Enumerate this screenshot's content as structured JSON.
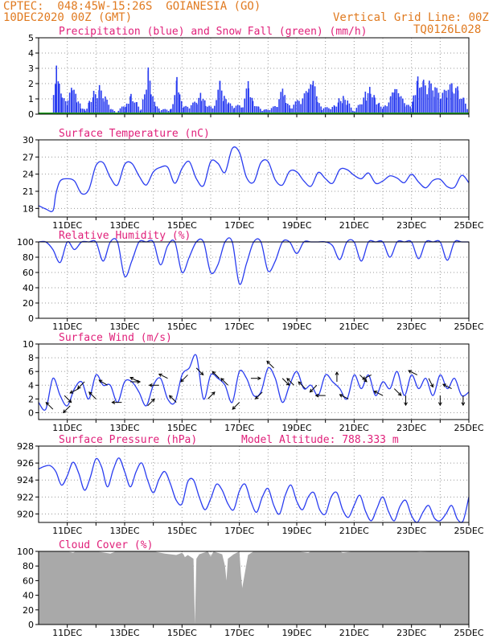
{
  "header": {
    "line1_left": "CPTEC:  048:45W-15:26S  GOIANESIA (GO)",
    "line2_left": "10DEC2020 00Z (GMT)",
    "line2_right": "Vertical Grid Line: 00Z",
    "line3_right": "TQ0126L028"
  },
  "colors": {
    "header": "#e07a20",
    "title": "#e0207a",
    "series": "#2a3df0",
    "snow": "#20a020",
    "cloud": "#a9a9a9"
  },
  "x_tick_labels": [
    "11DEC",
    "13DEC",
    "15DEC",
    "17DEC",
    "19DEC",
    "21DEC",
    "23DEC",
    "25DEC"
  ],
  "chart_data": [
    {
      "id": "precip",
      "type": "bar",
      "title": "Precipitation (blue) and Snow Fall (green) (mm/h)",
      "ylim": [
        0,
        5
      ],
      "yticks": [
        0,
        1,
        2,
        3,
        4,
        5
      ],
      "x_range_days": [
        10,
        25
      ],
      "series": [
        {
          "name": "Precipitation",
          "color": "#2a3df0",
          "points": [
            [
              10.5,
              1.3
            ],
            [
              10.6,
              3.2
            ],
            [
              10.7,
              2.0
            ],
            [
              10.8,
              1.1
            ],
            [
              11.0,
              1.0
            ],
            [
              11.15,
              2.0
            ],
            [
              11.3,
              1.2
            ],
            [
              11.45,
              0.6
            ],
            [
              11.6,
              0.3
            ],
            [
              11.75,
              1.0
            ],
            [
              11.9,
              1.6
            ],
            [
              12.1,
              1.9
            ],
            [
              12.3,
              1.2
            ],
            [
              12.5,
              0.4
            ],
            [
              12.7,
              0.1
            ],
            [
              13.05,
              0.9
            ],
            [
              13.2,
              1.5
            ],
            [
              13.4,
              0.8
            ],
            [
              13.55,
              0.3
            ],
            [
              13.8,
              3.3
            ],
            [
              13.9,
              1.5
            ],
            [
              14.05,
              0.7
            ],
            [
              14.2,
              0.3
            ],
            [
              14.6,
              0.4
            ],
            [
              14.8,
              2.5
            ],
            [
              14.9,
              1.3
            ],
            [
              15.05,
              0.5
            ],
            [
              15.5,
              0.9
            ],
            [
              15.65,
              1.5
            ],
            [
              15.8,
              0.8
            ],
            [
              16.05,
              0.4
            ],
            [
              16.3,
              2.2
            ],
            [
              16.45,
              1.2
            ],
            [
              16.6,
              0.8
            ],
            [
              16.8,
              0.5
            ],
            [
              17.1,
              0.8
            ],
            [
              17.3,
              2.3
            ],
            [
              17.45,
              1.0
            ],
            [
              17.65,
              0.5
            ],
            [
              17.85,
              0.3
            ],
            [
              18.3,
              0.6
            ],
            [
              18.5,
              2.0
            ],
            [
              18.6,
              1.2
            ],
            [
              18.75,
              0.5
            ],
            [
              19.4,
              1.7
            ],
            [
              19.55,
              2.4
            ],
            [
              19.7,
              1.0
            ],
            [
              19.85,
              0.4
            ],
            [
              20.3,
              0.6
            ],
            [
              20.45,
              1.1
            ],
            [
              20.6,
              1.2
            ],
            [
              20.75,
              0.9
            ],
            [
              21.0,
              0.2
            ],
            [
              21.4,
              1.6
            ],
            [
              21.55,
              1.9
            ],
            [
              21.7,
              1.3
            ],
            [
              21.85,
              0.8
            ],
            [
              22.0,
              0.5
            ],
            [
              22.25,
              1.2
            ],
            [
              22.4,
              1.8
            ],
            [
              22.55,
              1.4
            ],
            [
              22.75,
              0.8
            ],
            [
              22.95,
              0.5
            ],
            [
              23.05,
              1.6
            ],
            [
              23.2,
              2.8
            ],
            [
              23.4,
              2.3
            ],
            [
              23.6,
              2.2
            ],
            [
              23.8,
              1.9
            ],
            [
              24.0,
              1.3
            ],
            [
              24.2,
              1.8
            ],
            [
              24.4,
              2.1
            ],
            [
              24.6,
              1.8
            ],
            [
              24.8,
              1.1
            ],
            [
              24.95,
              0.5
            ]
          ]
        },
        {
          "name": "Snow Fall",
          "color": "#20a020",
          "points": []
        }
      ]
    },
    {
      "id": "temp",
      "type": "line",
      "title": "Surface Temperature (nC)",
      "ylim": [
        16.5,
        30
      ],
      "yticks": [
        18,
        21,
        24,
        27,
        30
      ],
      "x_range_days": [
        10,
        25
      ],
      "x": [
        10.0,
        10.25,
        10.5,
        10.6,
        10.75,
        11.0,
        11.25,
        11.5,
        11.75,
        12.0,
        12.25,
        12.5,
        12.75,
        13.0,
        13.25,
        13.5,
        13.75,
        14.0,
        14.25,
        14.5,
        14.75,
        15.0,
        15.25,
        15.5,
        15.75,
        16.0,
        16.25,
        16.5,
        16.75,
        17.0,
        17.25,
        17.5,
        17.75,
        18.0,
        18.25,
        18.5,
        18.75,
        19.0,
        19.25,
        19.5,
        19.75,
        20.0,
        20.25,
        20.5,
        20.75,
        21.0,
        21.25,
        21.5,
        21.75,
        22.0,
        22.25,
        22.5,
        22.75,
        23.0,
        23.25,
        23.5,
        23.75,
        24.0,
        24.25,
        24.5,
        24.75,
        25.0
      ],
      "y": [
        18.5,
        17.9,
        17.6,
        20.5,
        22.8,
        23.2,
        22.8,
        20.6,
        21.3,
        25.5,
        26.0,
        23.4,
        22.1,
        25.7,
        25.9,
        23.7,
        22.1,
        24.4,
        25.2,
        25.2,
        22.4,
        25.0,
        26.2,
        23.2,
        22.0,
        26.2,
        25.9,
        24.3,
        28.5,
        27.8,
        23.4,
        22.6,
        26.0,
        26.2,
        23.0,
        22.1,
        24.5,
        24.4,
        22.8,
        21.9,
        24.3,
        23.2,
        22.4,
        24.8,
        24.8,
        23.8,
        23.2,
        24.2,
        22.4,
        22.8,
        23.7,
        23.3,
        22.5,
        24.0,
        22.6,
        21.6,
        22.9,
        23.1,
        21.8,
        21.7,
        23.8,
        22.5
      ]
    },
    {
      "id": "rh",
      "type": "line",
      "title": "Relative Humidity (%)",
      "ylim": [
        0,
        100
      ],
      "yticks": [
        0,
        20,
        40,
        60,
        80,
        100
      ],
      "x_range_days": [
        10,
        25
      ],
      "x": [
        10.0,
        10.25,
        10.5,
        10.75,
        11.0,
        11.25,
        11.5,
        11.75,
        12.0,
        12.25,
        12.5,
        12.75,
        13.0,
        13.25,
        13.5,
        13.75,
        14.0,
        14.25,
        14.5,
        14.75,
        15.0,
        15.25,
        15.5,
        15.75,
        16.0,
        16.25,
        16.5,
        16.75,
        17.0,
        17.25,
        17.5,
        17.75,
        18.0,
        18.25,
        18.5,
        18.75,
        19.0,
        19.25,
        19.5,
        19.75,
        20.0,
        20.25,
        20.5,
        20.75,
        21.0,
        21.25,
        21.5,
        21.75,
        22.0,
        22.25,
        22.5,
        22.75,
        23.0,
        23.25,
        23.5,
        23.75,
        24.0,
        24.25,
        24.5,
        24.75,
        25.0
      ],
      "y": [
        100,
        100,
        90,
        73,
        100,
        90,
        100,
        100,
        100,
        75,
        100,
        100,
        55,
        75,
        100,
        100,
        100,
        70,
        95,
        100,
        60,
        80,
        100,
        100,
        60,
        70,
        100,
        100,
        45,
        72,
        100,
        100,
        62,
        75,
        100,
        100,
        85,
        100,
        100,
        100,
        100,
        95,
        77,
        100,
        100,
        75,
        100,
        100,
        100,
        80,
        100,
        100,
        100,
        78,
        100,
        100,
        100,
        76,
        100,
        100,
        100
      ]
    },
    {
      "id": "wind",
      "type": "line",
      "title": "Surface Wind (m/s)",
      "ylim": [
        -1,
        10
      ],
      "yticks": [
        0,
        2,
        4,
        6,
        8,
        10
      ],
      "x_range_days": [
        10,
        25
      ],
      "x": [
        10.0,
        10.25,
        10.5,
        10.75,
        11.0,
        11.25,
        11.5,
        11.75,
        12.0,
        12.25,
        12.5,
        12.75,
        13.0,
        13.25,
        13.5,
        13.75,
        14.0,
        14.25,
        14.5,
        14.75,
        15.0,
        15.25,
        15.5,
        15.75,
        16.0,
        16.25,
        16.5,
        16.75,
        17.0,
        17.25,
        17.5,
        17.75,
        18.0,
        18.25,
        18.5,
        18.75,
        19.0,
        19.25,
        19.5,
        19.75,
        20.0,
        20.25,
        20.5,
        20.75,
        21.0,
        21.25,
        21.5,
        21.75,
        22.0,
        22.25,
        22.5,
        22.75,
        23.0,
        23.25,
        23.5,
        23.75,
        24.0,
        24.25,
        24.5,
        24.75,
        25.0
      ],
      "y": [
        1.5,
        0.5,
        5.0,
        2.5,
        1.0,
        3.5,
        4.5,
        2.0,
        5.5,
        4.0,
        4.0,
        1.5,
        4.5,
        4.5,
        3.0,
        1.0,
        4.0,
        5.0,
        2.0,
        1.5,
        5.5,
        6.5,
        8.3,
        2.0,
        5.5,
        5.0,
        4.0,
        1.5,
        6.0,
        5.0,
        2.5,
        3.0,
        6.5,
        5.0,
        1.5,
        4.0,
        6.0,
        3.5,
        4.0,
        2.5,
        5.5,
        4.5,
        3.5,
        2.0,
        5.5,
        3.5,
        5.5,
        2.5,
        4.5,
        3.5,
        6.0,
        2.5,
        5.5,
        3.5,
        5.0,
        2.5,
        5.5,
        3.5,
        5.0,
        2.5,
        3.0
      ],
      "vectors": [
        [
          10.5,
          -1,
          1
        ],
        [
          10.9,
          1,
          -1
        ],
        [
          11.1,
          -1,
          -1
        ],
        [
          11.4,
          -1,
          -0.5
        ],
        [
          11.6,
          -1,
          -1
        ],
        [
          12.0,
          -1,
          1
        ],
        [
          12.4,
          -1,
          0.6
        ],
        [
          12.9,
          -1,
          0
        ],
        [
          13.2,
          1,
          0
        ],
        [
          13.5,
          -1,
          0.5
        ],
        [
          13.8,
          1,
          1
        ],
        [
          14.2,
          -1,
          0
        ],
        [
          14.5,
          -1,
          0.5
        ],
        [
          14.8,
          -1,
          1
        ],
        [
          15.2,
          -1,
          -1
        ],
        [
          15.5,
          1,
          -1
        ],
        [
          15.9,
          1,
          1
        ],
        [
          16.3,
          -1,
          1
        ],
        [
          16.6,
          -1,
          1
        ],
        [
          17.0,
          -1,
          -1
        ],
        [
          17.4,
          1,
          0
        ],
        [
          17.8,
          -1,
          -1
        ],
        [
          18.2,
          -1,
          1
        ],
        [
          18.5,
          1,
          -1
        ],
        [
          18.9,
          -1,
          1
        ],
        [
          19.3,
          -1,
          1
        ],
        [
          19.7,
          -1,
          -1
        ],
        [
          20.0,
          -1,
          0
        ],
        [
          20.4,
          0,
          1
        ],
        [
          20.8,
          -1,
          0.5
        ],
        [
          21.2,
          1,
          -1
        ],
        [
          21.6,
          -1,
          -0.5
        ],
        [
          22.0,
          -1,
          0.5
        ],
        [
          22.4,
          1,
          -1
        ],
        [
          22.8,
          0,
          -1
        ],
        [
          23.2,
          -1,
          0.5
        ],
        [
          23.6,
          0.5,
          -1
        ],
        [
          24.0,
          0,
          -1
        ],
        [
          24.4,
          -1,
          0.5
        ],
        [
          24.8,
          0,
          -1
        ]
      ]
    },
    {
      "id": "pres",
      "type": "line",
      "title": "Surface Pressure (hPa)",
      "annotation": "Model Altitude: 788.333 m",
      "ylim": [
        919,
        928
      ],
      "yticks": [
        920,
        922,
        924,
        926,
        928
      ],
      "x_range_days": [
        10,
        25
      ],
      "x": [
        10.0,
        10.2,
        10.4,
        10.6,
        10.8,
        11.0,
        11.2,
        11.4,
        11.6,
        11.8,
        12.0,
        12.2,
        12.4,
        12.6,
        12.8,
        13.0,
        13.2,
        13.4,
        13.6,
        13.8,
        14.0,
        14.2,
        14.4,
        14.6,
        14.8,
        15.0,
        15.2,
        15.4,
        15.6,
        15.8,
        16.0,
        16.2,
        16.4,
        16.6,
        16.8,
        17.0,
        17.2,
        17.4,
        17.6,
        17.8,
        18.0,
        18.2,
        18.4,
        18.6,
        18.8,
        19.0,
        19.2,
        19.4,
        19.6,
        19.8,
        20.0,
        20.2,
        20.4,
        20.6,
        20.8,
        21.0,
        21.2,
        21.4,
        21.6,
        21.8,
        22.0,
        22.2,
        22.4,
        22.6,
        22.8,
        23.0,
        23.2,
        23.4,
        23.6,
        23.8,
        24.0,
        24.2,
        24.4,
        24.6,
        24.8,
        25.0
      ],
      "y": [
        925.3,
        925.6,
        925.7,
        925.0,
        923.4,
        924.5,
        926.1,
        924.8,
        922.8,
        924.3,
        926.5,
        925.5,
        923.2,
        925.2,
        926.6,
        925.0,
        923.2,
        925.0,
        926.0,
        924.0,
        922.5,
        924.1,
        925.0,
        923.5,
        921.6,
        921.2,
        923.8,
        924.0,
        922.0,
        920.5,
        921.8,
        923.5,
        922.8,
        921.2,
        920.5,
        922.7,
        923.5,
        921.5,
        920.2,
        922.0,
        923.0,
        921.0,
        920.0,
        922.2,
        923.4,
        921.5,
        920.5,
        922.0,
        922.5,
        920.5,
        920.0,
        922.0,
        922.5,
        920.5,
        919.6,
        921.0,
        922.2,
        920.3,
        919.2,
        920.7,
        922.0,
        920.3,
        919.2,
        920.9,
        921.6,
        919.8,
        919.0,
        920.2,
        921.0,
        919.5,
        919.2,
        920.0,
        921.0,
        919.4,
        919.2,
        922.0
      ]
    },
    {
      "id": "cloud",
      "type": "area",
      "title": "Cloud Cover (%)",
      "ylim": [
        0,
        100
      ],
      "yticks": [
        0,
        20,
        40,
        60,
        80,
        100
      ],
      "x_range_days": [
        10,
        25
      ],
      "x": [
        10.0,
        10.5,
        11.0,
        11.2,
        11.3,
        11.5,
        12.0,
        12.5,
        12.7,
        13.0,
        14.0,
        14.4,
        14.8,
        15.0,
        15.05,
        15.1,
        15.2,
        15.4,
        15.45,
        15.5,
        15.6,
        15.9,
        16.0,
        16.1,
        16.4,
        16.5,
        16.55,
        16.6,
        16.8,
        17.0,
        17.05,
        17.1,
        17.3,
        17.5,
        18.0,
        18.5,
        19.0,
        19.4,
        19.5,
        20.0,
        20.5,
        20.6,
        21.0,
        22.0,
        23.0,
        23.3,
        24.0,
        24.5,
        25.0
      ],
      "y": [
        100,
        100,
        100,
        98,
        100,
        100,
        100,
        97,
        100,
        100,
        100,
        97,
        95,
        98,
        96,
        92,
        95,
        90,
        0,
        90,
        96,
        100,
        93,
        100,
        96,
        80,
        60,
        90,
        96,
        100,
        70,
        50,
        95,
        100,
        100,
        100,
        100,
        98,
        100,
        100,
        100,
        98,
        100,
        100,
        100,
        99,
        100,
        100,
        100
      ]
    }
  ]
}
